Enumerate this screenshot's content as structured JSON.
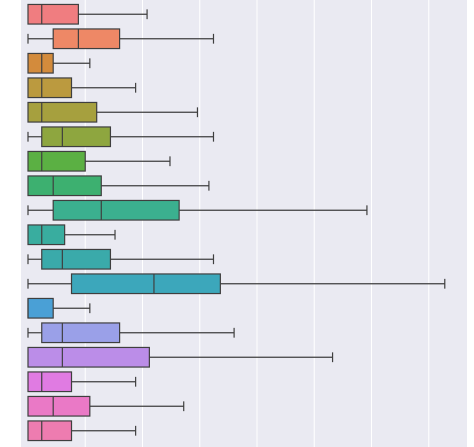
{
  "chart_data": {
    "type": "boxplot",
    "orientation": "horizontal",
    "grid": true,
    "background": "#eaeaf2",
    "gridColor": "#ffffff",
    "xlim": [
      0,
      19
    ],
    "gridlines": [
      2.5,
      5,
      7.5,
      10,
      12.5,
      15,
      17.5
    ],
    "boxes": [
      {
        "color": "#f07d80",
        "whislo": 0.0,
        "q1": 0.0,
        "med": 0.6,
        "q3": 2.2,
        "whishi": 5.2
      },
      {
        "color": "#ee8866",
        "whislo": 0.0,
        "q1": 1.1,
        "med": 2.2,
        "q3": 4.0,
        "whishi": 8.1
      },
      {
        "color": "#d38b3c",
        "whislo": 0.0,
        "q1": 0.0,
        "med": 0.6,
        "q3": 1.1,
        "whishi": 2.7
      },
      {
        "color": "#bb9a3f",
        "whislo": 0.0,
        "q1": 0.0,
        "med": 0.6,
        "q3": 1.9,
        "whishi": 4.7
      },
      {
        "color": "#a6a03e",
        "whislo": 0.0,
        "q1": 0.0,
        "med": 0.6,
        "q3": 3.0,
        "whishi": 7.4
      },
      {
        "color": "#8ea63f",
        "whislo": 0.0,
        "q1": 0.6,
        "med": 1.5,
        "q3": 3.6,
        "whishi": 8.1
      },
      {
        "color": "#5bb043",
        "whislo": 0.0,
        "q1": 0.0,
        "med": 0.6,
        "q3": 2.5,
        "whishi": 6.2
      },
      {
        "color": "#3db070",
        "whislo": 0.0,
        "q1": 0.0,
        "med": 1.1,
        "q3": 3.2,
        "whishi": 7.9
      },
      {
        "color": "#3bb08f",
        "whislo": 0.0,
        "q1": 1.1,
        "med": 3.2,
        "q3": 6.6,
        "whishi": 14.8
      },
      {
        "color": "#39ad9f",
        "whislo": 0.0,
        "q1": 0.0,
        "med": 0.6,
        "q3": 1.6,
        "whishi": 3.8
      },
      {
        "color": "#3aaaaa",
        "whislo": 0.0,
        "q1": 0.6,
        "med": 1.5,
        "q3": 3.6,
        "whishi": 8.1
      },
      {
        "color": "#3ca7bb",
        "whislo": 0.0,
        "q1": 1.9,
        "med": 5.5,
        "q3": 8.4,
        "whishi": 18.2
      },
      {
        "color": "#4aa0d6",
        "whislo": 0.0,
        "q1": 0.0,
        "med": 0.0,
        "q3": 1.1,
        "whishi": 2.7
      },
      {
        "color": "#9aa0e8",
        "whislo": 0.0,
        "q1": 0.6,
        "med": 1.5,
        "q3": 4.0,
        "whishi": 9.0
      },
      {
        "color": "#bb8de8",
        "whislo": 0.0,
        "q1": 0.0,
        "med": 1.5,
        "q3": 5.3,
        "whishi": 13.3
      },
      {
        "color": "#e07be2",
        "whislo": 0.0,
        "q1": 0.0,
        "med": 0.6,
        "q3": 1.9,
        "whishi": 4.7
      },
      {
        "color": "#ea79c6",
        "whislo": 0.0,
        "q1": 0.0,
        "med": 1.1,
        "q3": 2.7,
        "whishi": 6.8
      },
      {
        "color": "#ee7cb0",
        "whislo": 0.0,
        "q1": 0.0,
        "med": 0.6,
        "q3": 1.9,
        "whishi": 4.7
      }
    ]
  }
}
